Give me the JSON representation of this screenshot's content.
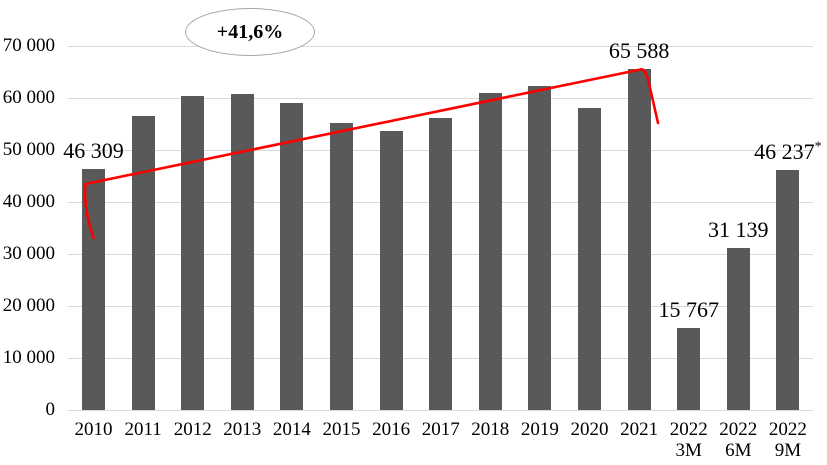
{
  "chart_data": {
    "type": "bar",
    "title": "",
    "xlabel": "",
    "ylabel": "",
    "categories": [
      [
        "2010"
      ],
      [
        "2011"
      ],
      [
        "2012"
      ],
      [
        "2013"
      ],
      [
        "2014"
      ],
      [
        "2015"
      ],
      [
        "2016"
      ],
      [
        "2017"
      ],
      [
        "2018"
      ],
      [
        "2019"
      ],
      [
        "2020"
      ],
      [
        "2021"
      ],
      [
        "2022",
        "3M"
      ],
      [
        "2022",
        "6M"
      ],
      [
        "2022",
        "9M"
      ]
    ],
    "values": [
      46309,
      56600,
      60300,
      60700,
      59000,
      55100,
      53600,
      56100,
      60900,
      62400,
      58100,
      65588,
      15767,
      31139,
      46237
    ],
    "value_labels": [
      {
        "index": 0,
        "text": "46 309"
      },
      {
        "index": 11,
        "text": "65 588"
      },
      {
        "index": 12,
        "text": "15 767"
      },
      {
        "index": 13,
        "text": "31 139"
      },
      {
        "index": 14,
        "text": "46 237",
        "superscript": "*"
      }
    ],
    "y_axis": {
      "ticks": [
        "0",
        "10 000",
        "20 000",
        "30 000",
        "40 000",
        "50 000",
        "60 000",
        "70 000"
      ],
      "min": 0,
      "max": 70000,
      "step": 10000
    },
    "grid": true,
    "legend": false,
    "annotation": {
      "text": "+41,6%",
      "shape": "ellipse"
    },
    "trend_line": {
      "from_category": "2010",
      "to_category": "2021"
    },
    "colors": {
      "bar": "#595959",
      "trend_line": "#fe0000",
      "gridline": "#d9d9d9",
      "ellipse_border": "#a6a6a6",
      "text": "#000000"
    }
  }
}
